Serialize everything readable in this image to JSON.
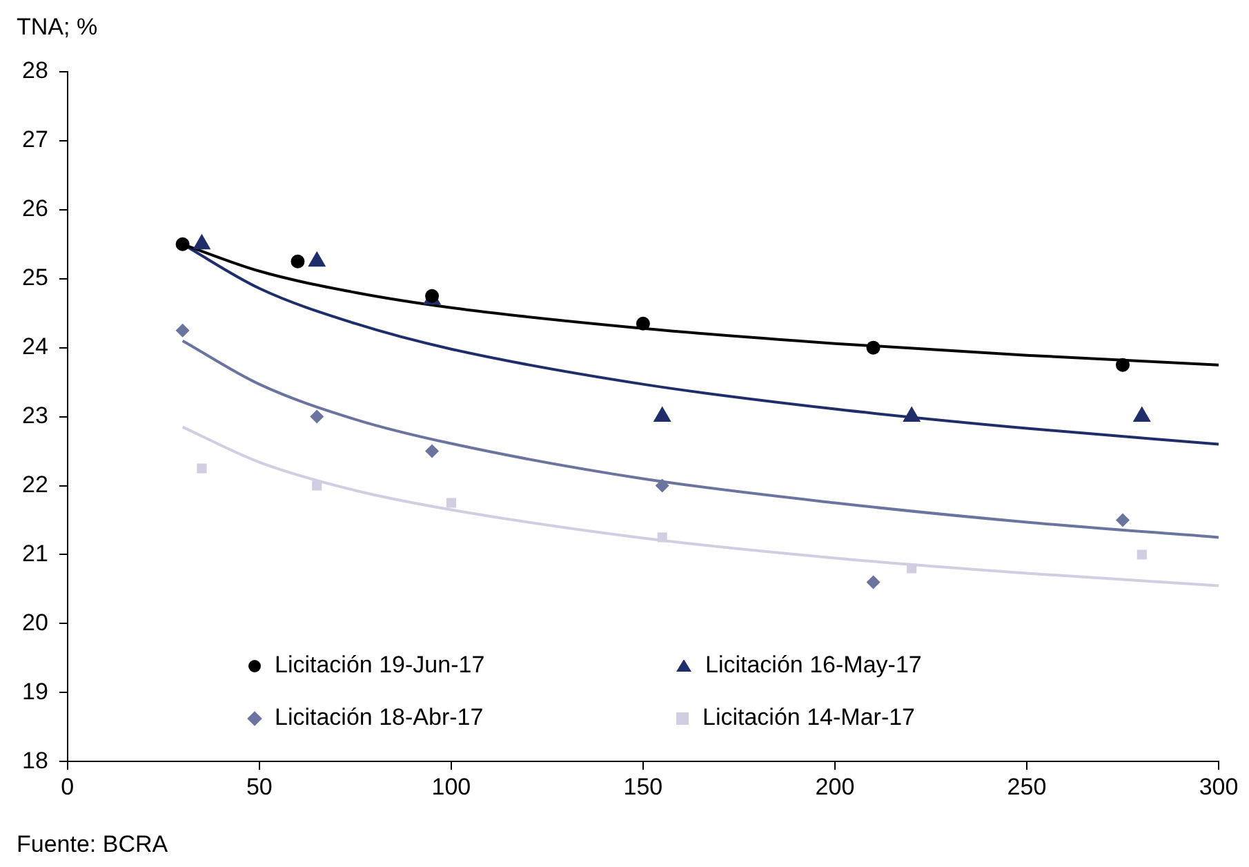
{
  "chart_data": {
    "type": "scatter",
    "ylabel": "TNA; %",
    "annotations": [
      "Fuente: BCRA"
    ],
    "xlim": [
      0,
      300
    ],
    "xticks": [
      0,
      50,
      100,
      150,
      200,
      250,
      300
    ],
    "ylim": [
      18,
      28
    ],
    "yticks": [
      18,
      19,
      20,
      21,
      22,
      23,
      24,
      25,
      26,
      27,
      28
    ],
    "grid": false,
    "legend": "bottom",
    "series": [
      {
        "name": "Licitación 19-Jun-17",
        "color": "#000000",
        "marker": "circle",
        "x": [
          30,
          60,
          95,
          150,
          210,
          275
        ],
        "values": [
          25.5,
          25.25,
          24.75,
          24.35,
          24.0,
          23.75
        ]
      },
      {
        "name": "Licitación 16-May-17",
        "color": "#1f2d6b",
        "marker": "triangle",
        "x": [
          35,
          65,
          95,
          155,
          220,
          280
        ],
        "values": [
          25.5,
          25.25,
          24.7,
          23.0,
          23.0,
          23.0
        ]
      },
      {
        "name": "Licitación 18-Abr-17",
        "color": "#6b739f",
        "marker": "diamond",
        "x": [
          30,
          65,
          95,
          155,
          210,
          275
        ],
        "values": [
          24.25,
          23.0,
          22.5,
          22.0,
          20.6,
          21.5
        ]
      },
      {
        "name": "Licitación 14-Mar-17",
        "color": "#d3cde2",
        "marker": "square",
        "x": [
          35,
          65,
          100,
          155,
          220,
          280
        ],
        "values": [
          22.25,
          22.0,
          21.75,
          21.25,
          20.8,
          21.0
        ]
      },
      {
        "type": "line",
        "color": "#000000",
        "marker": "none",
        "x": [
          30,
          50,
          75,
          100,
          150,
          200,
          250,
          300
        ],
        "values": [
          25.5,
          25.11,
          24.8,
          24.58,
          24.28,
          24.06,
          23.89,
          23.75
        ]
      },
      {
        "type": "line",
        "color": "#1f2d6b",
        "marker": "none",
        "x": [
          30,
          50,
          75,
          100,
          150,
          200,
          250,
          300
        ],
        "values": [
          25.5,
          24.86,
          24.35,
          23.98,
          23.47,
          23.11,
          22.83,
          22.6
        ]
      },
      {
        "type": "line",
        "color": "#6b739f",
        "marker": "none",
        "x": [
          30,
          50,
          75,
          100,
          150,
          200,
          250,
          300
        ],
        "values": [
          24.1,
          23.47,
          22.96,
          22.61,
          22.1,
          21.75,
          21.47,
          21.25
        ]
      },
      {
        "type": "line",
        "color": "#d3cde2",
        "marker": "none",
        "x": [
          30,
          50,
          75,
          100,
          150,
          200,
          250,
          300
        ],
        "values": [
          22.85,
          22.34,
          21.93,
          21.65,
          21.24,
          20.95,
          20.73,
          20.55
        ]
      }
    ]
  }
}
